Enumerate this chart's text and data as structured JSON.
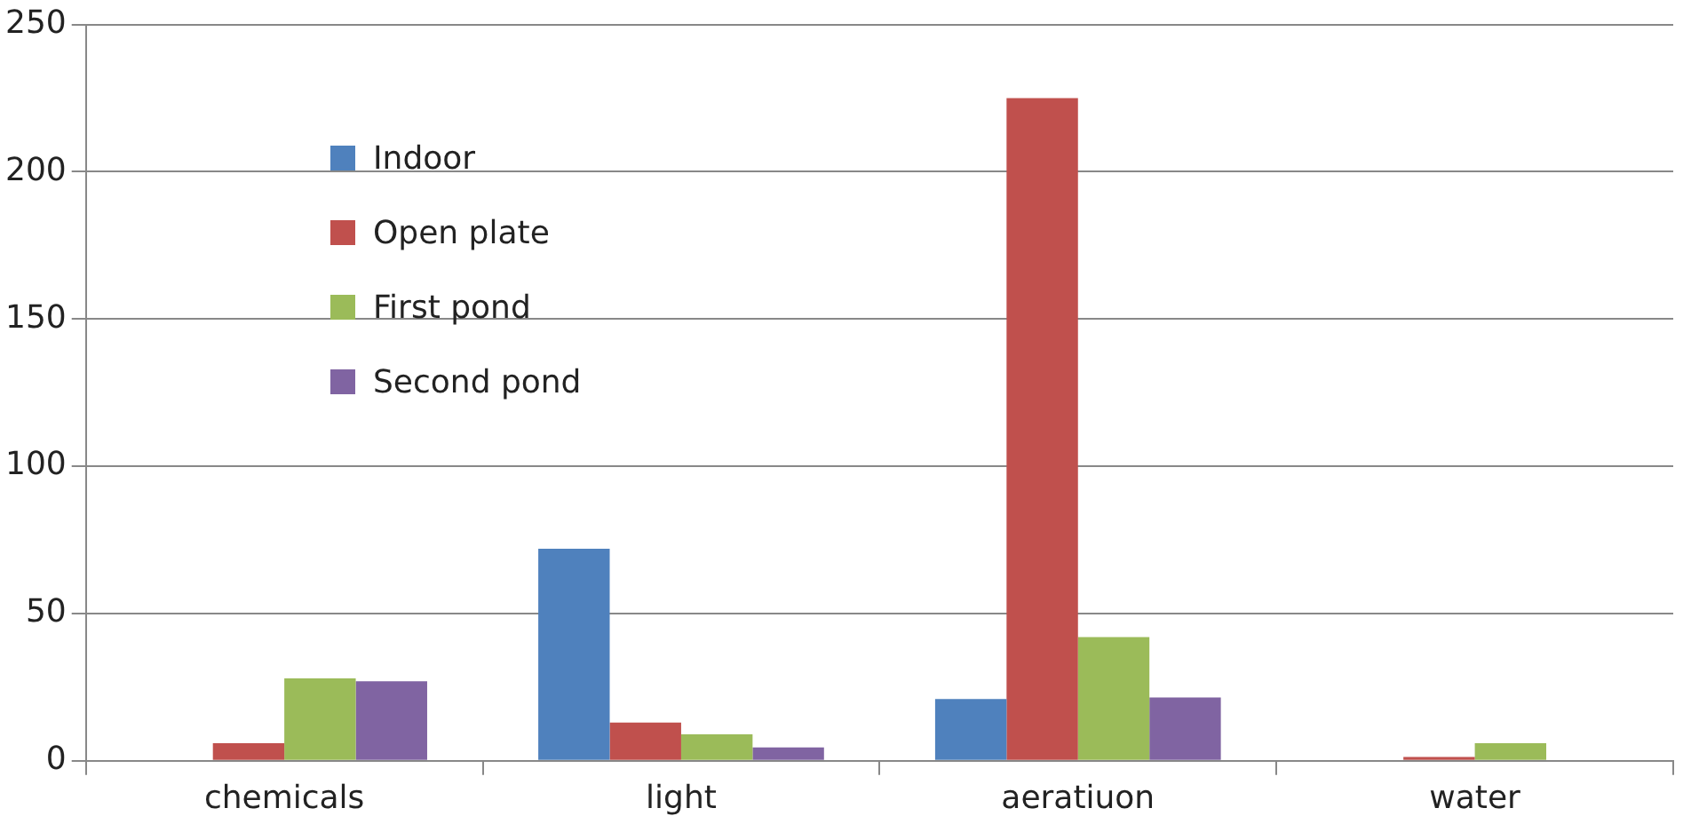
{
  "chart_data": {
    "type": "bar",
    "categories": [
      "chemicals",
      "light",
      "aeratiuon",
      "water"
    ],
    "series": [
      {
        "name": "Indoor",
        "color": "#4f81bd",
        "values": [
          0,
          72,
          21,
          0
        ]
      },
      {
        "name": "Open plate",
        "color": "#c0504d",
        "values": [
          6,
          13,
          225,
          1.3
        ]
      },
      {
        "name": "First pond",
        "color": "#9bbb59",
        "values": [
          28,
          9,
          42,
          6
        ]
      },
      {
        "name": "Second pond",
        "color": "#8064a2",
        "values": [
          27,
          4.5,
          21.5,
          null
        ]
      }
    ],
    "ylim": [
      0,
      250
    ],
    "yticks": [
      0,
      50,
      100,
      150,
      200,
      250
    ],
    "grid": "y",
    "legend": "top left"
  }
}
